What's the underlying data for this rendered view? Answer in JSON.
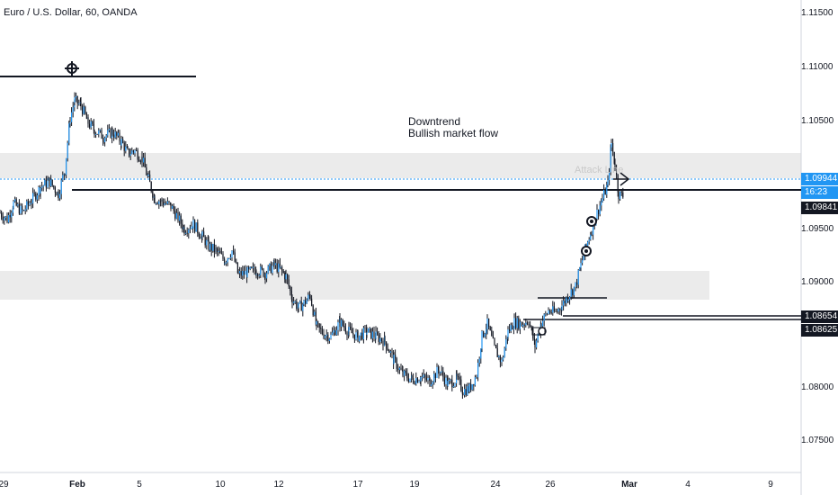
{
  "header": {
    "symbol_title": "Euro / U.S. Dollar, 60, OANDA"
  },
  "annotations": {
    "line1": "Downtrend",
    "line2": "Bullish market flow",
    "watermark": "Attack Line"
  },
  "price_axis": {
    "labels": [
      "1.11500",
      "1.11000",
      "1.10500",
      "1.09500",
      "1.09000",
      "1.08000",
      "1.07500"
    ],
    "tags": {
      "last_price": "1.09944",
      "countdown": "16:23",
      "level_1": "1.09841",
      "level_2": "1.08654",
      "level_3": "1.08625"
    }
  },
  "date_axis": {
    "labels": [
      "29",
      "Feb",
      "5",
      "10",
      "12",
      "17",
      "19",
      "24",
      "26",
      "Mar",
      "4",
      "9"
    ]
  },
  "colors": {
    "candle": "#2196f3",
    "wick": "#131722",
    "zone": "#ebebeb",
    "level_line": "#131722",
    "last_price_line": "#2196f3"
  },
  "chart_data": {
    "type": "line",
    "title": "Euro / U.S. Dollar, 60, OANDA",
    "xlabel": "",
    "ylabel": "",
    "ylim": [
      1.0735,
      1.118
    ],
    "series": [
      {
        "values": [
          [
            0,
            1.0975
          ],
          [
            8,
            1.0968
          ],
          [
            15,
            1.0985
          ],
          [
            25,
            1.0976
          ],
          [
            35,
            1.0988
          ],
          [
            45,
            1.1002
          ],
          [
            55,
            1.1008
          ],
          [
            65,
            1.0995
          ],
          [
            72,
            1.102
          ],
          [
            78,
            1.1075
          ],
          [
            83,
            1.1093
          ],
          [
            90,
            1.1088
          ],
          [
            98,
            1.107
          ],
          [
            105,
            1.1062
          ],
          [
            115,
            1.1055
          ],
          [
            125,
            1.106
          ],
          [
            135,
            1.105
          ],
          [
            142,
            1.1038
          ],
          [
            150,
            1.104
          ],
          [
            158,
            1.1032
          ],
          [
            165,
            1.101
          ],
          [
            172,
            1.099
          ],
          [
            180,
            1.0987
          ],
          [
            190,
            1.0982
          ],
          [
            198,
            1.097
          ],
          [
            205,
            1.0958
          ],
          [
            215,
            1.0963
          ],
          [
            225,
            1.095
          ],
          [
            232,
            1.094
          ],
          [
            240,
            1.0935
          ],
          [
            250,
            1.0925
          ],
          [
            258,
            1.0935
          ],
          [
            265,
            1.091
          ],
          [
            275,
            1.0912
          ],
          [
            285,
            1.0915
          ],
          [
            295,
            1.0912
          ],
          [
            305,
            1.092
          ],
          [
            312,
            1.0915
          ],
          [
            318,
            1.0908
          ],
          [
            325,
            1.0885
          ],
          [
            332,
            1.0875
          ],
          [
            338,
            1.088
          ],
          [
            345,
            1.0888
          ],
          [
            352,
            1.0855
          ],
          [
            360,
            1.0848
          ],
          [
            368,
            1.0845
          ],
          [
            378,
            1.086
          ],
          [
            388,
            1.085
          ],
          [
            398,
            1.0845
          ],
          [
            408,
            1.085
          ],
          [
            418,
            1.0845
          ],
          [
            428,
            1.084
          ],
          [
            438,
            1.082
          ],
          [
            448,
            1.0805
          ],
          [
            458,
            1.08
          ],
          [
            468,
            1.0802
          ],
          [
            478,
            1.0798
          ],
          [
            488,
            1.081
          ],
          [
            498,
            1.0795
          ],
          [
            508,
            1.08
          ],
          [
            515,
            1.0788
          ],
          [
            522,
            1.079
          ],
          [
            530,
            1.0805
          ],
          [
            536,
            1.0845
          ],
          [
            542,
            1.0858
          ],
          [
            550,
            1.0832
          ],
          [
            558,
            1.0818
          ],
          [
            565,
            1.085
          ],
          [
            572,
            1.086
          ],
          [
            580,
            1.0858
          ],
          [
            588,
            1.0862
          ],
          [
            595,
            1.0835
          ],
          [
            602,
            1.086
          ],
          [
            610,
            1.0872
          ],
          [
            618,
            1.087
          ],
          [
            625,
            1.0878
          ],
          [
            632,
            1.0888
          ],
          [
            640,
            1.0898
          ],
          [
            646,
            1.092
          ],
          [
            652,
            1.094
          ],
          [
            658,
            1.0958
          ],
          [
            664,
            1.0975
          ],
          [
            670,
            1.099
          ],
          [
            676,
            1.1005
          ],
          [
            680,
            1.1048
          ],
          [
            684,
            1.1025
          ],
          [
            688,
            1.0995
          ],
          [
            694,
            1.0992
          ]
        ]
      }
    ]
  }
}
